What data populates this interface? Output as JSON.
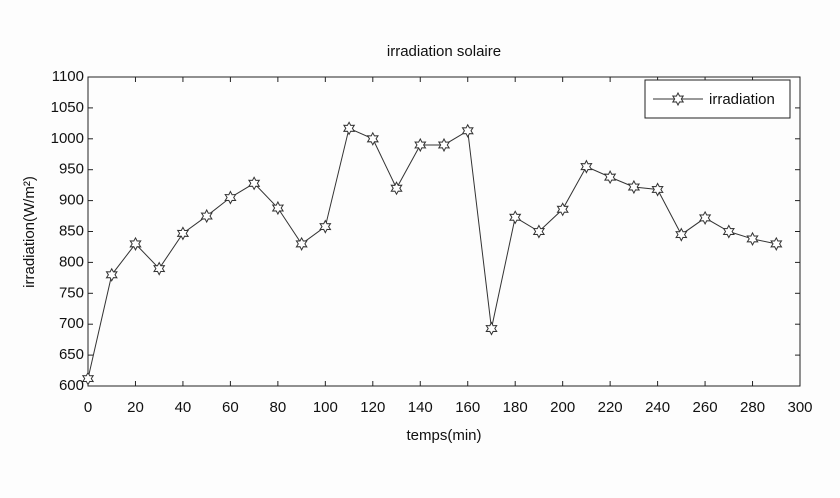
{
  "chart_data": {
    "type": "line",
    "title": "irradiation solaire",
    "x_label": "temps(min)",
    "y_label": "irradiation(W/m²)",
    "x": [
      0,
      10,
      20,
      30,
      40,
      50,
      60,
      70,
      80,
      90,
      100,
      110,
      120,
      130,
      140,
      150,
      160,
      170,
      180,
      190,
      200,
      210,
      220,
      230,
      240,
      250,
      260,
      270,
      280,
      290
    ],
    "series": [
      {
        "name": "irradiation",
        "color": "#333333",
        "values": [
          612,
          780,
          830,
          790,
          847,
          875,
          905,
          928,
          888,
          830,
          858,
          1017,
          1000,
          920,
          990,
          990,
          1013,
          693,
          873,
          850,
          886,
          955,
          938,
          922,
          918,
          845,
          872,
          850,
          838,
          830
        ]
      }
    ],
    "xlim": [
      0,
      300
    ],
    "xticks": [
      0,
      20,
      40,
      60,
      80,
      100,
      120,
      140,
      160,
      180,
      200,
      220,
      240,
      260,
      280,
      300
    ],
    "ylim": [
      600,
      1100
    ],
    "yticks": [
      600,
      650,
      700,
      750,
      800,
      850,
      900,
      950,
      1000,
      1050,
      1100
    ],
    "legend": "upper right",
    "grid": false
  }
}
